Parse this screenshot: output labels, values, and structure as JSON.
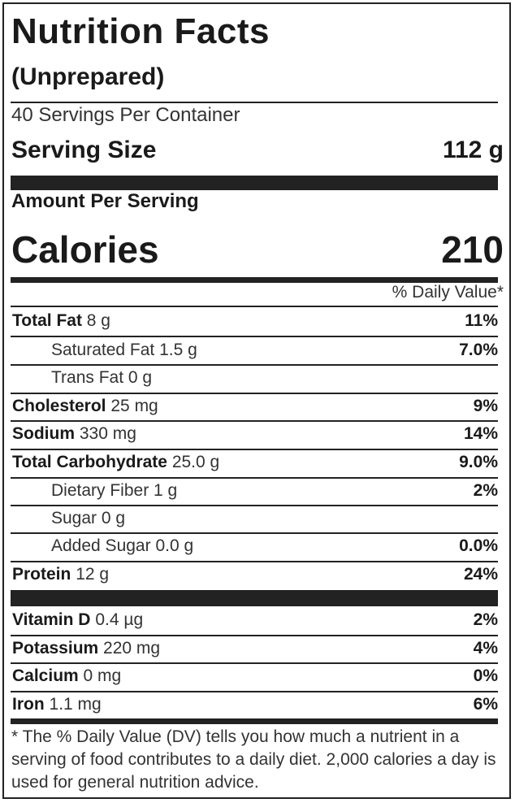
{
  "title": "Nutrition Facts",
  "subtitle": "(Unprepared)",
  "servings_per_container": "40 Servings Per Container",
  "serving_size_label": "Serving Size",
  "serving_size_value": "112 g",
  "amount_per_serving": "Amount Per Serving",
  "calories_label": "Calories",
  "calories_value": "210",
  "daily_value_header": "% Daily Value*",
  "nutrients": [
    {
      "name": "Total Fat",
      "amount": "8 g",
      "dv": "11%",
      "indent": false
    },
    {
      "name": "Saturated Fat",
      "amount": "1.5 g",
      "dv": "7.0%",
      "indent": true
    },
    {
      "name": "Trans Fat",
      "amount": "0 g",
      "dv": "",
      "indent": true
    },
    {
      "name": "Cholesterol",
      "amount": "25 mg",
      "dv": "9%",
      "indent": false
    },
    {
      "name": "Sodium",
      "amount": "330 mg",
      "dv": "14%",
      "indent": false
    },
    {
      "name": "Total Carbohydrate",
      "amount": "25.0 g",
      "dv": "9.0%",
      "indent": false
    },
    {
      "name": "Dietary Fiber",
      "amount": "1 g",
      "dv": "2%",
      "indent": true
    },
    {
      "name": "Sugar",
      "amount": "0 g",
      "dv": "",
      "indent": true
    },
    {
      "name": "Added Sugar",
      "amount": "0.0 g",
      "dv": "0.0%",
      "indent": true
    },
    {
      "name": "Protein",
      "amount": "12 g",
      "dv": "24%",
      "indent": false
    }
  ],
  "vitamins": [
    {
      "name": "Vitamin D",
      "amount": "0.4 µg",
      "dv": "2%"
    },
    {
      "name": "Potassium",
      "amount": "220 mg",
      "dv": "4%"
    },
    {
      "name": "Calcium",
      "amount": "0 mg",
      "dv": "0%"
    },
    {
      "name": "Iron",
      "amount": "1.1 mg",
      "dv": "6%"
    }
  ],
  "footnote": "* The % Daily Value (DV) tells you how much a nutrient in a serving of food contributes to a daily diet. 2,000 calories a day is used for general nutrition advice."
}
